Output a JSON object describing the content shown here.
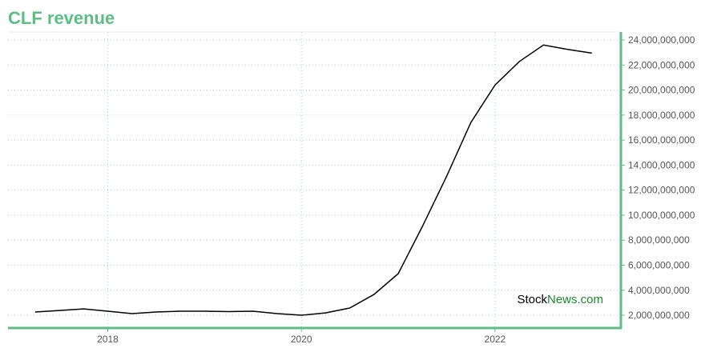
{
  "chart_data": {
    "type": "line",
    "title": "CLF revenue",
    "watermark": [
      "Stock",
      "News.com"
    ],
    "x": [
      2017.25,
      2017.5,
      2017.75,
      2018.0,
      2018.25,
      2018.5,
      2018.75,
      2019.0,
      2019.25,
      2019.5,
      2019.75,
      2020.0,
      2020.25,
      2020.5,
      2020.75,
      2021.0,
      2021.25,
      2021.5,
      2021.75,
      2022.0,
      2022.25,
      2022.5,
      2022.75,
      2023.0
    ],
    "series": [
      {
        "name": "CLF revenue",
        "color": "#000000",
        "values": [
          2260000000,
          2380000000,
          2510000000,
          2320000000,
          2130000000,
          2260000000,
          2320000000,
          2320000000,
          2290000000,
          2320000000,
          2130000000,
          2000000000,
          2190000000,
          2580000000,
          3660000000,
          5320000000,
          9100000000,
          13100000000,
          17400000000,
          20400000000,
          22270000000,
          23600000000,
          23250000000,
          22950000000
        ]
      }
    ],
    "xlim": [
      2016.97,
      2023.3
    ],
    "xticks": [
      2018,
      2020,
      2022
    ],
    "ylim": [
      980000000,
      24640000000
    ],
    "yticks": [
      {
        "value": 2000000000,
        "label": "2,000,000,000"
      },
      {
        "value": 4000000000,
        "label": "4,000,000,000"
      },
      {
        "value": 6000000000,
        "label": "6,000,000,000"
      },
      {
        "value": 8000000000,
        "label": "8,000,000,000"
      },
      {
        "value": 10000000000,
        "label": "10,000,000,000"
      },
      {
        "value": 12000000000,
        "label": "12,000,000,000"
      },
      {
        "value": 14000000000,
        "label": "14,000,000,000"
      },
      {
        "value": 16000000000,
        "label": "16,000,000,000"
      },
      {
        "value": 18000000000,
        "label": "18,000,000,000"
      },
      {
        "value": 20000000000,
        "label": "20,000,000,000"
      },
      {
        "value": 22000000000,
        "label": "22,000,000,000"
      },
      {
        "value": 24000000000,
        "label": "24,000,000,000"
      }
    ],
    "grid": true,
    "axis_color": "#5dbe85"
  }
}
